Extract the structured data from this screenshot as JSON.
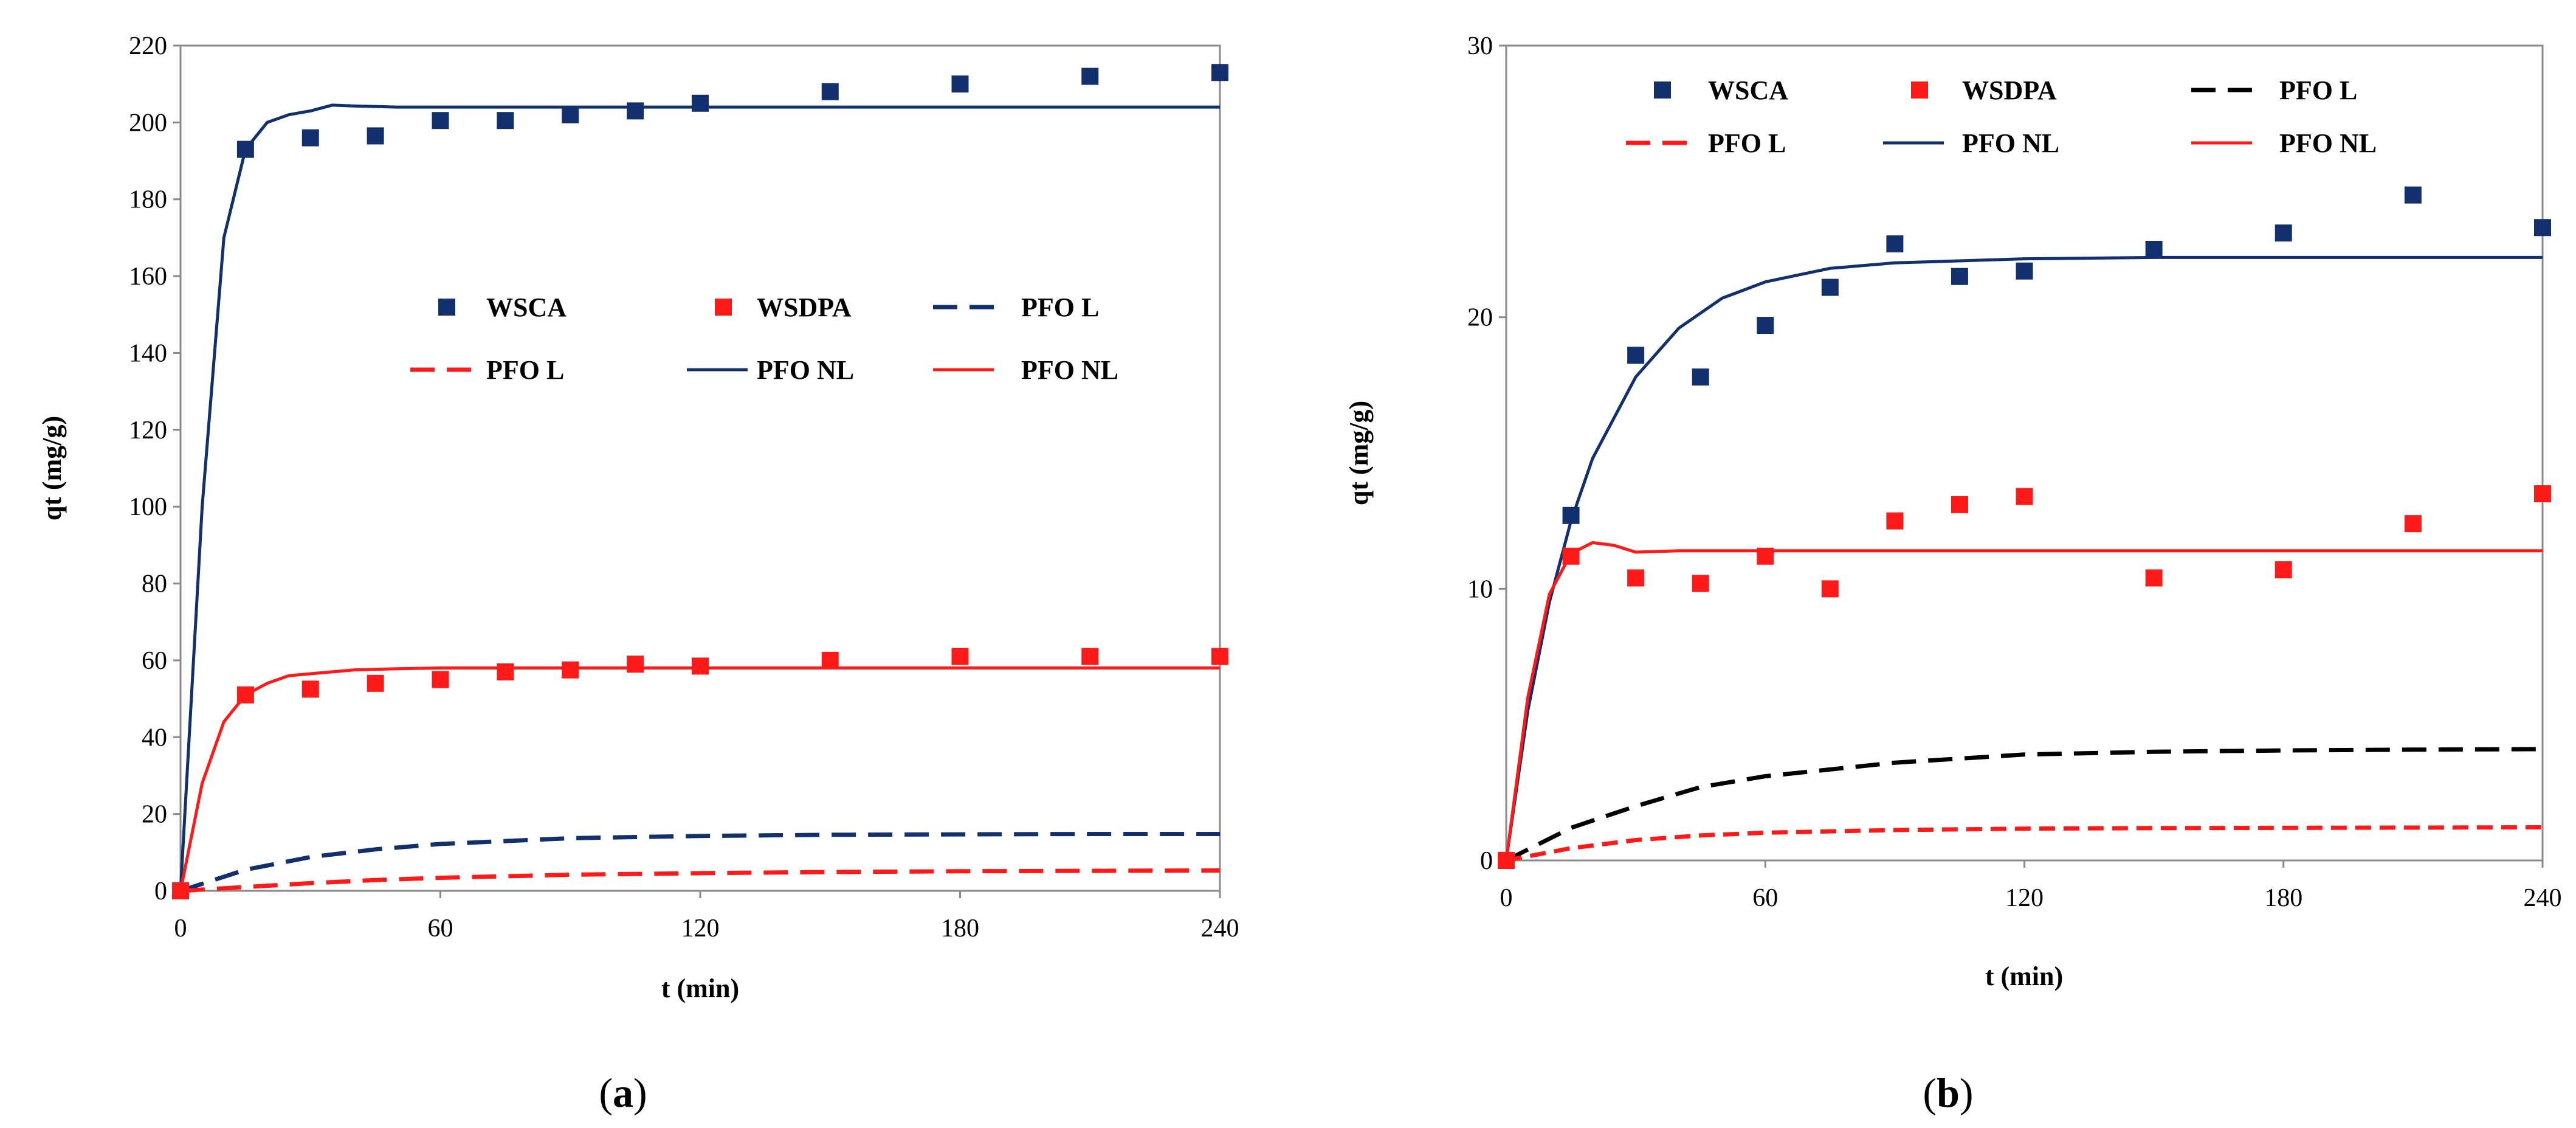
{
  "chart_data": [
    {
      "type": "line",
      "caption": {
        "open": "(",
        "letter": "a",
        "close": ")"
      },
      "xlabel": "t (min)",
      "ylabel": "qt (mg/g)",
      "xlim": [
        0,
        240
      ],
      "ylim": [
        0,
        220
      ],
      "xticks": [
        0,
        60,
        120,
        180,
        240
      ],
      "yticks": [
        0,
        20,
        40,
        60,
        80,
        100,
        120,
        140,
        160,
        180,
        200,
        220
      ],
      "legend_location": "center-right",
      "series": [
        {
          "name": "WSCA",
          "kind": "scatter",
          "color": "#13306e",
          "x": [
            0,
            15,
            30,
            45,
            60,
            75,
            90,
            105,
            120,
            150,
            180,
            210,
            240
          ],
          "y": [
            0,
            193,
            196,
            196.5,
            200.5,
            200.5,
            202,
            203,
            205,
            208,
            210,
            212,
            213
          ]
        },
        {
          "name": "WSDPA",
          "kind": "scatter",
          "color": "#ff1a1a",
          "x": [
            0,
            15,
            30,
            45,
            60,
            75,
            90,
            105,
            120,
            150,
            180,
            210,
            240
          ],
          "y": [
            0,
            51,
            52.5,
            54,
            55,
            57,
            57.5,
            59,
            58.5,
            60,
            61,
            61,
            61
          ]
        },
        {
          "name": "PFO L",
          "kind": "line",
          "dash": "dashed",
          "color": "#13306e",
          "x": [
            0,
            15,
            30,
            45,
            60,
            90,
            120,
            150,
            180,
            210,
            240
          ],
          "y": [
            0,
            5.5,
            8.8,
            10.8,
            12.2,
            13.7,
            14.3,
            14.6,
            14.7,
            14.8,
            14.8
          ]
        },
        {
          "name": "PFO L",
          "kind": "line",
          "dash": "dashed",
          "color": "#ff1a1a",
          "x": [
            0,
            15,
            30,
            45,
            60,
            90,
            120,
            150,
            180,
            210,
            240
          ],
          "y": [
            0,
            1,
            2,
            2.8,
            3.4,
            4.2,
            4.6,
            4.9,
            5.1,
            5.2,
            5.3
          ]
        },
        {
          "name": "PFO NL",
          "kind": "line",
          "dash": "solid",
          "color": "#13306e",
          "x": [
            0,
            5,
            10,
            15,
            20,
            25,
            30,
            35,
            40,
            50,
            60,
            90,
            120,
            180,
            240
          ],
          "y": [
            0,
            100,
            170,
            193,
            200,
            202,
            203,
            204.5,
            204.3,
            204,
            204,
            204,
            204,
            204,
            204
          ]
        },
        {
          "name": "PFO NL",
          "kind": "line",
          "dash": "solid",
          "color": "#ff1a1a",
          "x": [
            0,
            5,
            10,
            15,
            20,
            25,
            30,
            40,
            50,
            60,
            90,
            120,
            180,
            240
          ],
          "y": [
            0,
            28,
            44,
            51,
            54,
            56,
            56.5,
            57.5,
            57.8,
            58,
            58,
            58,
            58,
            58
          ]
        }
      ]
    },
    {
      "type": "line",
      "caption": {
        "open": "(",
        "letter": "b",
        "close": ")"
      },
      "xlabel": "t (min)",
      "ylabel": "qt (mg/g)",
      "xlim": [
        0,
        240
      ],
      "ylim": [
        0,
        30
      ],
      "xticks": [
        0,
        60,
        120,
        180,
        240
      ],
      "yticks": [
        0,
        10,
        20,
        30
      ],
      "legend_location": "top",
      "series": [
        {
          "name": "WSCA",
          "kind": "scatter",
          "color": "#13306e",
          "x": [
            0,
            15,
            30,
            45,
            60,
            75,
            90,
            105,
            120,
            150,
            180,
            210,
            240
          ],
          "y": [
            0,
            12.7,
            18.6,
            17.8,
            19.7,
            21.1,
            22.7,
            21.5,
            21.7,
            22.5,
            23.1,
            24.5,
            23.3
          ]
        },
        {
          "name": "WSDPA",
          "kind": "scatter",
          "color": "#ff1a1a",
          "x": [
            0,
            15,
            30,
            45,
            60,
            75,
            90,
            105,
            120,
            150,
            180,
            210,
            240
          ],
          "y": [
            0,
            11.2,
            10.4,
            10.2,
            11.2,
            10.0,
            12.5,
            13.1,
            13.4,
            10.4,
            10.7,
            12.4,
            13.5
          ]
        },
        {
          "name": "PFO L",
          "kind": "line",
          "dash": "dashed",
          "color": "#000000",
          "x": [
            0,
            15,
            30,
            45,
            60,
            90,
            120,
            150,
            180,
            210,
            240
          ],
          "y": [
            0,
            1.2,
            2.0,
            2.7,
            3.1,
            3.6,
            3.9,
            4.0,
            4.05,
            4.08,
            4.1
          ]
        },
        {
          "name": "PFO L",
          "kind": "line",
          "dash": "dashed",
          "color": "#ff1a1a",
          "x": [
            0,
            15,
            30,
            45,
            60,
            90,
            120,
            150,
            180,
            210,
            240
          ],
          "y": [
            0,
            0.45,
            0.75,
            0.92,
            1.02,
            1.12,
            1.17,
            1.19,
            1.2,
            1.21,
            1.22
          ]
        },
        {
          "name": "PFO NL",
          "kind": "line",
          "dash": "solid",
          "color": "#13306e",
          "x": [
            0,
            5,
            10,
            15,
            20,
            30,
            40,
            50,
            60,
            75,
            90,
            120,
            150,
            180,
            240
          ],
          "y": [
            0,
            5.5,
            9.5,
            12.5,
            14.8,
            17.8,
            19.6,
            20.7,
            21.3,
            21.8,
            22.0,
            22.15,
            22.2,
            22.2,
            22.2
          ]
        },
        {
          "name": "PFO NL",
          "kind": "line",
          "dash": "solid",
          "color": "#ff1a1a",
          "x": [
            0,
            5,
            10,
            15,
            20,
            25,
            30,
            40,
            60,
            120,
            180,
            240
          ],
          "y": [
            0,
            6,
            9.8,
            11.3,
            11.7,
            11.6,
            11.35,
            11.4,
            11.4,
            11.4,
            11.4,
            11.4
          ]
        }
      ]
    }
  ]
}
